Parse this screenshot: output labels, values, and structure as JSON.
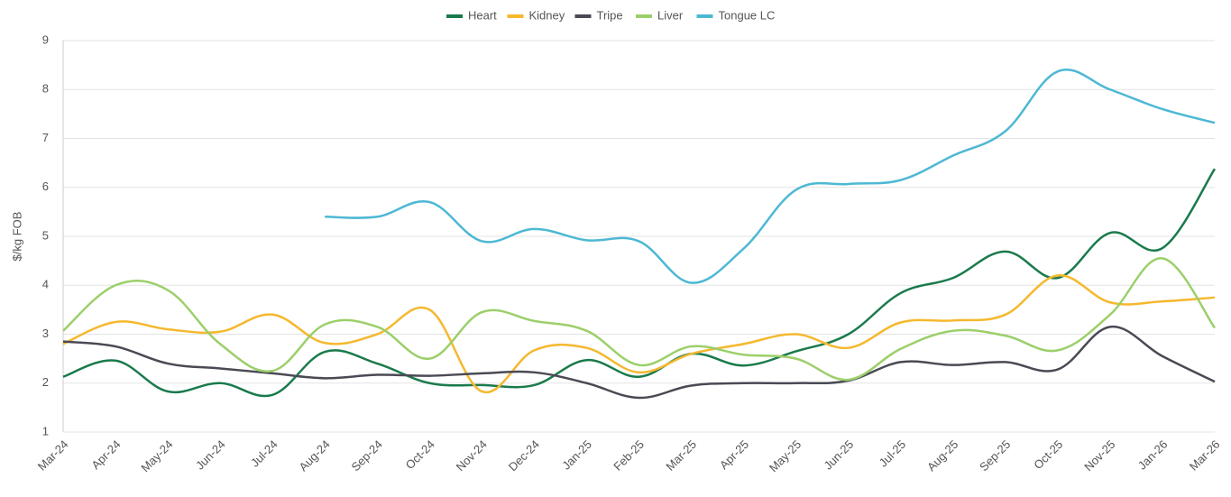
{
  "chart_data": {
    "type": "line",
    "y_label": "$/kg FOB",
    "categories": [
      "Mar-24",
      "Apr-24",
      "May-24",
      "Jun-24",
      "Jul-24",
      "Aug-24",
      "Sep-24",
      "Oct-24",
      "Nov-24",
      "Dec-24",
      "Jan-25",
      "Feb-25",
      "Mar-25",
      "Apr-25",
      "May-25",
      "Jun-25",
      "Jul-25",
      "Aug-25",
      "Sep-25",
      "Oct-25",
      "Nov-25",
      "Jan-26",
      "Mar-26"
    ],
    "series": [
      {
        "name": "Heart",
        "color": "#1a7a4c",
        "values": [
          2.13,
          2.46,
          1.83,
          2.0,
          1.76,
          2.64,
          2.4,
          2.0,
          1.96,
          1.96,
          2.47,
          2.13,
          2.6,
          2.36,
          2.65,
          3.0,
          3.84,
          4.15,
          4.69,
          4.15,
          5.07,
          4.76,
          6.38
        ]
      },
      {
        "name": "Kidney",
        "color": "#f5b82e",
        "values": [
          2.8,
          3.25,
          3.1,
          3.05,
          3.4,
          2.82,
          3.0,
          3.5,
          1.83,
          2.67,
          2.72,
          2.22,
          2.6,
          2.8,
          3.0,
          2.72,
          3.24,
          3.28,
          3.4,
          4.2,
          3.65,
          3.67,
          3.75
        ]
      },
      {
        "name": "Tripe",
        "color": "#4a4a55",
        "values": [
          2.85,
          2.75,
          2.4,
          2.3,
          2.2,
          2.1,
          2.17,
          2.15,
          2.2,
          2.22,
          2.0,
          1.7,
          1.95,
          2.0,
          2.0,
          2.05,
          2.43,
          2.37,
          2.43,
          2.28,
          3.15,
          2.55,
          2.03
        ]
      },
      {
        "name": "Liver",
        "color": "#9ccf6a",
        "values": [
          3.07,
          4.0,
          3.9,
          2.8,
          2.25,
          3.2,
          3.15,
          2.5,
          3.45,
          3.27,
          3.07,
          2.37,
          2.75,
          2.58,
          2.5,
          2.07,
          2.7,
          3.07,
          2.97,
          2.67,
          3.4,
          4.55,
          3.13
        ]
      },
      {
        "name": "Tongue LC",
        "color": "#4db8d4",
        "values": [
          null,
          null,
          null,
          null,
          null,
          5.4,
          5.4,
          5.7,
          4.9,
          5.15,
          4.92,
          4.9,
          4.05,
          4.75,
          5.95,
          6.07,
          6.15,
          6.65,
          7.15,
          8.37,
          8.0,
          7.6,
          7.32
        ]
      }
    ],
    "ylim": [
      1,
      9
    ],
    "yticks": [
      1,
      2,
      3,
      4,
      5,
      6,
      7,
      8,
      9
    ],
    "grid": true,
    "legend": "top"
  }
}
